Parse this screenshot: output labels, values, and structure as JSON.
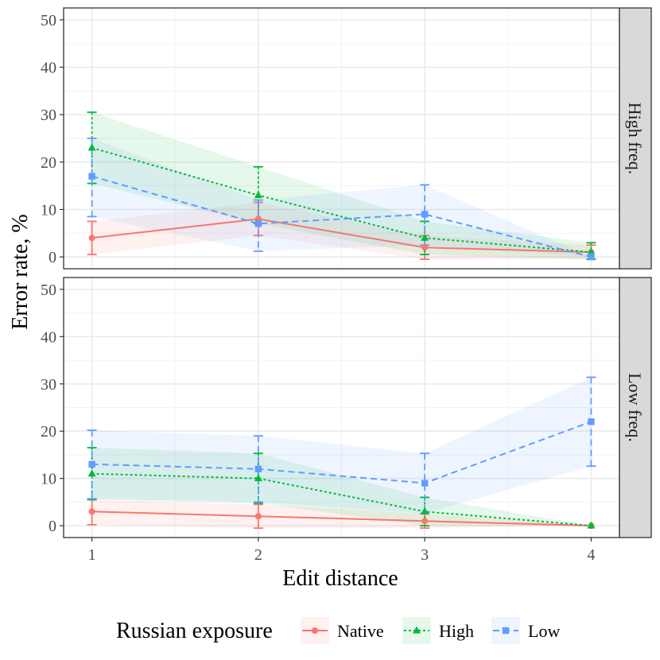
{
  "chart_data": {
    "type": "line",
    "xlabel": "Edit distance",
    "ylabel": "Error rate, %",
    "x": [
      1,
      2,
      3,
      4
    ],
    "xlim": [
      0.83,
      4.17
    ],
    "ylim": [
      -2.5,
      52.5
    ],
    "yticks": [
      0,
      10,
      20,
      30,
      40,
      50
    ],
    "xticks": [
      1,
      2,
      3,
      4
    ],
    "legend_title": "Russian exposure",
    "legend_position": "bottom",
    "series_styles": [
      {
        "name": "Native",
        "color": "#F8766D",
        "dash": "",
        "marker": "circle"
      },
      {
        "name": "High",
        "color": "#00BA38",
        "dash": "3,3",
        "marker": "triangle"
      },
      {
        "name": "Low",
        "color": "#619CFF",
        "dash": "8,5",
        "marker": "square"
      }
    ],
    "panels": [
      {
        "strip": "High freq.",
        "series": [
          {
            "name": "Native",
            "values": [
              4,
              8,
              2,
              1
            ],
            "lower": [
              0.5,
              4.5,
              -0.5,
              -0.5
            ],
            "upper": [
              7.5,
              11.5,
              4.5,
              2.5
            ]
          },
          {
            "name": "High",
            "values": [
              23,
              13,
              4,
              1
            ],
            "lower": [
              15.5,
              7,
              0.5,
              -0.5
            ],
            "upper": [
              30.5,
              19,
              7.5,
              3
            ]
          },
          {
            "name": "Low",
            "values": [
              17,
              7,
              9,
              0
            ],
            "lower": [
              8.5,
              1.2,
              2.5,
              0
            ],
            "upper": [
              25,
              12,
              15.2,
              0
            ]
          }
        ]
      },
      {
        "strip": "Low freq.",
        "series": [
          {
            "name": "Native",
            "values": [
              3,
              2,
              1,
              0
            ],
            "lower": [
              0.2,
              -0.5,
              -0.5,
              0
            ],
            "upper": [
              5.5,
              4.5,
              2.5,
              0
            ]
          },
          {
            "name": "High",
            "values": [
              11,
              10,
              3,
              0
            ],
            "lower": [
              5.5,
              4.8,
              0,
              0
            ],
            "upper": [
              16.5,
              15.3,
              6,
              0
            ]
          },
          {
            "name": "Low",
            "values": [
              13,
              12,
              9,
              22
            ],
            "lower": [
              5.7,
              5,
              2.6,
              12.6
            ],
            "upper": [
              20.2,
              19,
              15.3,
              31.4
            ]
          }
        ]
      }
    ]
  }
}
